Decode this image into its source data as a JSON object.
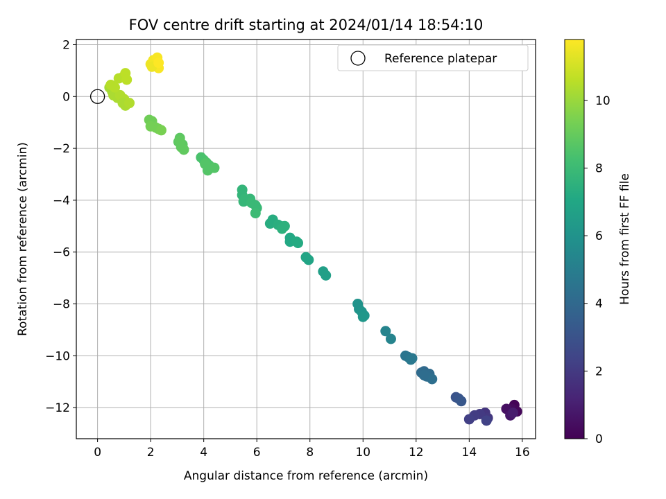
{
  "chart_data": {
    "type": "scatter",
    "title": "FOV centre drift starting at 2024/01/14 18:54:10",
    "xlabel": "Angular distance from reference (arcmin)",
    "ylabel": "Rotation from reference (arcmin)",
    "xlim": [
      -0.8,
      16.5
    ],
    "ylim": [
      -13.2,
      2.2
    ],
    "x_ticks": [
      0,
      2,
      4,
      6,
      8,
      10,
      12,
      14,
      16
    ],
    "y_ticks": [
      2,
      0,
      -2,
      -4,
      -6,
      -8,
      -10,
      -12
    ],
    "grid": true,
    "legend": {
      "position": "top-right",
      "entries": [
        "Reference platepar"
      ]
    },
    "reference_point": {
      "x": 0,
      "y": 0
    },
    "colorbar": {
      "label": "Hours from first FF file",
      "range": [
        0,
        11.8
      ],
      "ticks": [
        0,
        2,
        4,
        6,
        8,
        10
      ],
      "colormap": "viridis"
    },
    "points": [
      {
        "x": 15.7,
        "y": -11.9,
        "c": 0.1
      },
      {
        "x": 15.6,
        "y": -12.05,
        "c": 0.3
      },
      {
        "x": 15.4,
        "y": -12.05,
        "c": 0.5
      },
      {
        "x": 15.8,
        "y": -12.15,
        "c": 0.2
      },
      {
        "x": 15.55,
        "y": -12.3,
        "c": 0.7
      },
      {
        "x": 15.65,
        "y": -12.2,
        "c": 0.9
      },
      {
        "x": 14.6,
        "y": -12.2,
        "c": 1.8
      },
      {
        "x": 14.7,
        "y": -12.4,
        "c": 1.9
      },
      {
        "x": 14.4,
        "y": -12.25,
        "c": 2.0
      },
      {
        "x": 14.2,
        "y": -12.3,
        "c": 2.1
      },
      {
        "x": 14.0,
        "y": -12.45,
        "c": 2.2
      },
      {
        "x": 14.65,
        "y": -12.5,
        "c": 2.3
      },
      {
        "x": 13.5,
        "y": -11.6,
        "c": 3.0
      },
      {
        "x": 13.6,
        "y": -11.65,
        "c": 3.1
      },
      {
        "x": 13.7,
        "y": -11.75,
        "c": 3.2
      },
      {
        "x": 12.3,
        "y": -10.6,
        "c": 4.0
      },
      {
        "x": 12.2,
        "y": -10.65,
        "c": 4.1
      },
      {
        "x": 12.5,
        "y": -10.7,
        "c": 4.1
      },
      {
        "x": 12.4,
        "y": -10.8,
        "c": 4.2
      },
      {
        "x": 12.6,
        "y": -10.9,
        "c": 4.3
      },
      {
        "x": 12.3,
        "y": -10.75,
        "c": 4.2
      },
      {
        "x": 11.6,
        "y": -10.0,
        "c": 4.6
      },
      {
        "x": 11.7,
        "y": -10.05,
        "c": 4.6
      },
      {
        "x": 11.8,
        "y": -10.15,
        "c": 4.7
      },
      {
        "x": 11.85,
        "y": -10.1,
        "c": 4.7
      },
      {
        "x": 10.85,
        "y": -9.05,
        "c": 5.3
      },
      {
        "x": 11.05,
        "y": -9.35,
        "c": 5.3
      },
      {
        "x": 9.8,
        "y": -8.0,
        "c": 6.0
      },
      {
        "x": 9.85,
        "y": -8.2,
        "c": 6.0
      },
      {
        "x": 9.95,
        "y": -8.3,
        "c": 6.1
      },
      {
        "x": 10.05,
        "y": -8.45,
        "c": 6.1
      },
      {
        "x": 10.0,
        "y": -8.5,
        "c": 6.2
      },
      {
        "x": 8.5,
        "y": -6.75,
        "c": 6.6
      },
      {
        "x": 8.6,
        "y": -6.9,
        "c": 6.6
      },
      {
        "x": 7.85,
        "y": -6.2,
        "c": 6.9
      },
      {
        "x": 7.95,
        "y": -6.3,
        "c": 6.9
      },
      {
        "x": 7.25,
        "y": -5.45,
        "c": 7.1
      },
      {
        "x": 7.25,
        "y": -5.6,
        "c": 7.1
      },
      {
        "x": 7.5,
        "y": -5.6,
        "c": 7.2
      },
      {
        "x": 7.55,
        "y": -5.65,
        "c": 7.2
      },
      {
        "x": 6.6,
        "y": -4.75,
        "c": 7.3
      },
      {
        "x": 6.5,
        "y": -4.9,
        "c": 7.3
      },
      {
        "x": 6.8,
        "y": -4.95,
        "c": 7.4
      },
      {
        "x": 6.9,
        "y": -5.0,
        "c": 7.4
      },
      {
        "x": 7.05,
        "y": -5.0,
        "c": 7.5
      },
      {
        "x": 6.95,
        "y": -5.1,
        "c": 7.5
      },
      {
        "x": 5.45,
        "y": -3.6,
        "c": 7.7
      },
      {
        "x": 5.45,
        "y": -3.8,
        "c": 7.7
      },
      {
        "x": 5.55,
        "y": -3.95,
        "c": 7.8
      },
      {
        "x": 5.5,
        "y": -4.05,
        "c": 7.8
      },
      {
        "x": 5.75,
        "y": -3.95,
        "c": 7.8
      },
      {
        "x": 5.8,
        "y": -4.1,
        "c": 7.9
      },
      {
        "x": 5.95,
        "y": -4.2,
        "c": 7.9
      },
      {
        "x": 6.0,
        "y": -4.3,
        "c": 7.9
      },
      {
        "x": 5.95,
        "y": -4.5,
        "c": 8.0
      },
      {
        "x": 3.9,
        "y": -2.35,
        "c": 8.4
      },
      {
        "x": 4.0,
        "y": -2.45,
        "c": 8.4
      },
      {
        "x": 4.1,
        "y": -2.55,
        "c": 8.5
      },
      {
        "x": 4.2,
        "y": -2.65,
        "c": 8.5
      },
      {
        "x": 4.3,
        "y": -2.75,
        "c": 8.5
      },
      {
        "x": 4.15,
        "y": -2.85,
        "c": 8.6
      },
      {
        "x": 4.4,
        "y": -2.75,
        "c": 8.6
      },
      {
        "x": 4.05,
        "y": -2.6,
        "c": 8.6
      },
      {
        "x": 3.1,
        "y": -1.6,
        "c": 8.8
      },
      {
        "x": 3.05,
        "y": -1.75,
        "c": 8.8
      },
      {
        "x": 3.2,
        "y": -1.85,
        "c": 8.8
      },
      {
        "x": 3.15,
        "y": -1.95,
        "c": 8.9
      },
      {
        "x": 3.25,
        "y": -2.05,
        "c": 8.9
      },
      {
        "x": 3.1,
        "y": -1.7,
        "c": 8.9
      },
      {
        "x": 1.95,
        "y": -0.9,
        "c": 9.2
      },
      {
        "x": 2.05,
        "y": -0.95,
        "c": 9.2
      },
      {
        "x": 2.0,
        "y": -1.15,
        "c": 9.3
      },
      {
        "x": 2.2,
        "y": -1.2,
        "c": 9.3
      },
      {
        "x": 2.3,
        "y": -1.25,
        "c": 9.3
      },
      {
        "x": 2.4,
        "y": -1.3,
        "c": 9.4
      },
      {
        "x": 0.45,
        "y": 0.35,
        "c": 10.2
      },
      {
        "x": 0.55,
        "y": 0.2,
        "c": 10.2
      },
      {
        "x": 0.6,
        "y": 0.05,
        "c": 10.3
      },
      {
        "x": 0.75,
        "y": -0.05,
        "c": 10.3
      },
      {
        "x": 0.85,
        "y": 0.05,
        "c": 10.4
      },
      {
        "x": 1.0,
        "y": -0.1,
        "c": 10.4
      },
      {
        "x": 0.95,
        "y": -0.25,
        "c": 10.3
      },
      {
        "x": 1.05,
        "y": -0.35,
        "c": 10.3
      },
      {
        "x": 1.2,
        "y": -0.25,
        "c": 10.4
      },
      {
        "x": 0.8,
        "y": 0.7,
        "c": 10.5
      },
      {
        "x": 0.95,
        "y": 0.75,
        "c": 10.5
      },
      {
        "x": 1.05,
        "y": 0.9,
        "c": 10.6
      },
      {
        "x": 1.1,
        "y": 0.65,
        "c": 10.6
      },
      {
        "x": 0.65,
        "y": 0.35,
        "c": 10.5
      },
      {
        "x": 0.5,
        "y": 0.45,
        "c": 10.5
      },
      {
        "x": 2.0,
        "y": 1.25,
        "c": 11.5
      },
      {
        "x": 2.1,
        "y": 1.4,
        "c": 11.6
      },
      {
        "x": 2.2,
        "y": 1.2,
        "c": 11.6
      },
      {
        "x": 2.25,
        "y": 1.5,
        "c": 11.7
      },
      {
        "x": 2.3,
        "y": 1.1,
        "c": 11.7
      },
      {
        "x": 2.05,
        "y": 1.15,
        "c": 11.5
      },
      {
        "x": 2.3,
        "y": 1.3,
        "c": 11.8
      }
    ]
  }
}
